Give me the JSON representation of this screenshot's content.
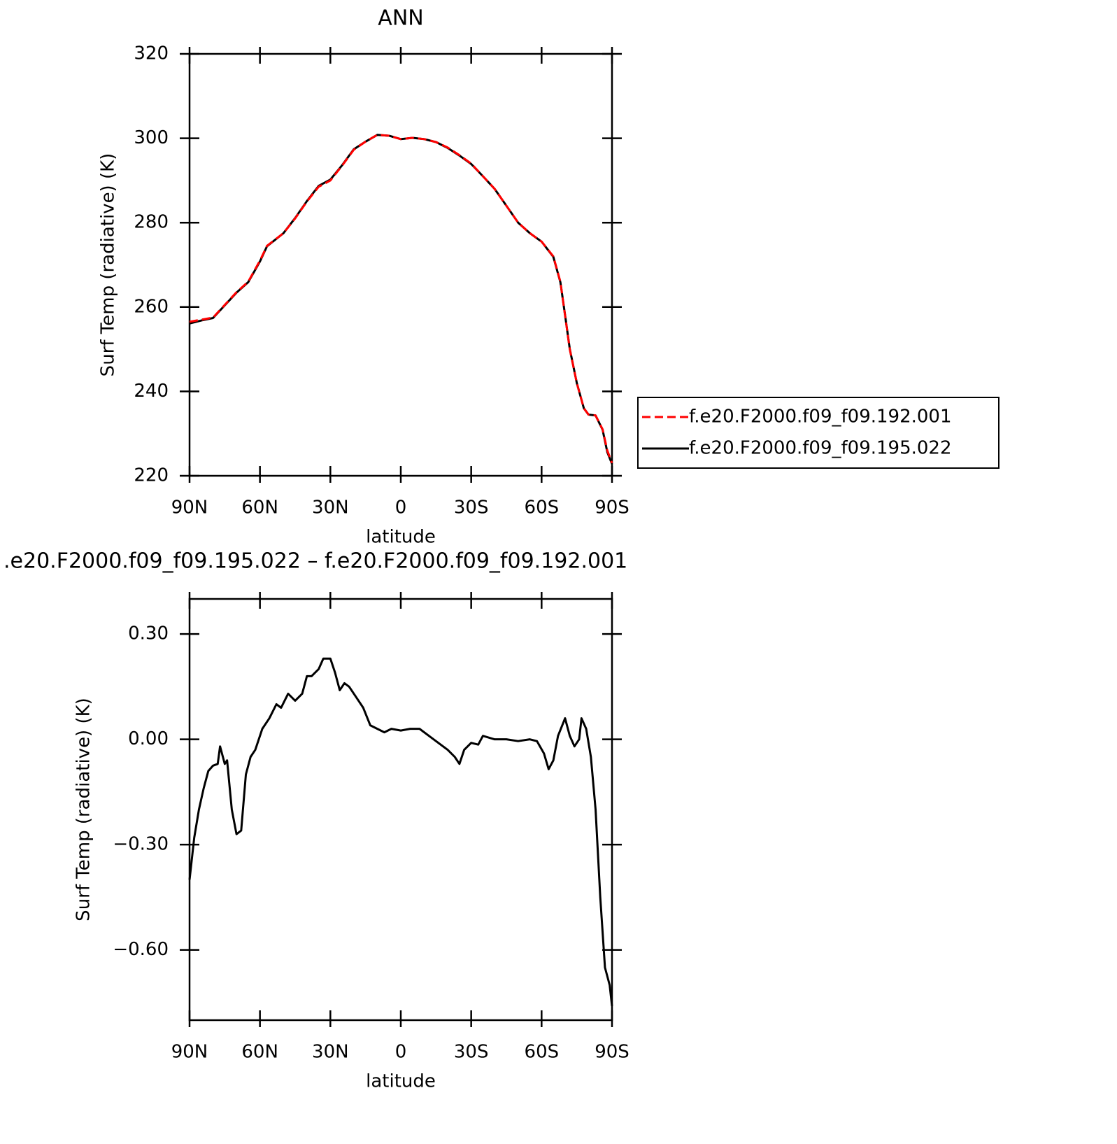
{
  "chart_data": [
    {
      "type": "line",
      "title": "ANN",
      "x_label": "latitude",
      "y_label": "Surf Temp (radiative) (K)",
      "x": [
        90,
        85,
        80,
        75,
        70,
        65,
        60,
        57,
        50,
        45,
        40,
        35,
        30,
        25,
        20,
        15,
        10,
        5,
        0,
        -5,
        -10,
        -15,
        -20,
        -25,
        -30,
        -35,
        -40,
        -45,
        -50,
        -55,
        -60,
        -65,
        -68,
        -70,
        -72,
        -75,
        -78,
        -80,
        -83,
        -86,
        -88,
        -90
      ],
      "series": [
        {
          "name": "f.e20.F2000.f09_f09.192.001",
          "color": "#ff0000",
          "line_style": "dashed",
          "values": [
            256.5,
            257,
            257.5,
            260.5,
            263.5,
            266,
            271,
            274.5,
            277.5,
            281,
            285,
            288.5,
            290,
            293.5,
            297.3,
            299.2,
            300.8,
            300.6,
            299.8,
            300.1,
            299.8,
            299.1,
            297.8,
            296,
            294,
            291,
            288,
            284,
            280,
            277.5,
            275.5,
            272,
            266,
            258,
            250,
            242,
            236,
            234.5,
            234.3,
            231,
            226,
            223
          ]
        },
        {
          "name": "f.e20.F2000.f09_f09.195.022",
          "color": "#000000",
          "line_style": "solid",
          "values": [
            256.1,
            256.8,
            257.4,
            260.4,
            263.4,
            265.9,
            270.8,
            274.4,
            277.5,
            281.1,
            285.1,
            288.7,
            290.2,
            293.6,
            297.4,
            299.2,
            300.8,
            300.6,
            299.8,
            300.1,
            299.8,
            299.1,
            297.7,
            295.9,
            293.9,
            291,
            288,
            284,
            280,
            277.5,
            275.5,
            271.9,
            265.9,
            258.1,
            250.1,
            242,
            236,
            234.5,
            234.3,
            230.9,
            225.6,
            222.8
          ]
        }
      ],
      "xlim": [
        90,
        -90
      ],
      "xticks": [
        {
          "value": 90,
          "label": "90N"
        },
        {
          "value": 60,
          "label": "60N"
        },
        {
          "value": 30,
          "label": "30N"
        },
        0,
        {
          "value": -30,
          "label": "30S"
        },
        {
          "value": -60,
          "label": "60S"
        },
        {
          "value": -90,
          "label": "90S"
        }
      ],
      "ylim": [
        220,
        320
      ],
      "yticks": [
        220,
        240,
        260,
        280,
        300,
        320
      ],
      "legend": "right"
    },
    {
      "type": "line",
      "title": ".e20.F2000.f09_f09.195.022 – f.e20.F2000.f09_f09.192.001",
      "x_label": "latitude",
      "y_label": "Surf Temp (radiative) (K)",
      "x": [
        90,
        88,
        86,
        84,
        82,
        80,
        78,
        77,
        75,
        74,
        72,
        70,
        68,
        66,
        64,
        62,
        59,
        56,
        53,
        51,
        48,
        45,
        42,
        40,
        38,
        35,
        33,
        30,
        28,
        26,
        24,
        22,
        19,
        16,
        13,
        10,
        7,
        4,
        0,
        -4,
        -8,
        -12,
        -16,
        -20,
        -23,
        -25,
        -27,
        -30,
        -33,
        -35,
        -40,
        -45,
        -50,
        -55,
        -58,
        -61,
        -63,
        -65,
        -67,
        -70,
        -72,
        -74,
        -76,
        -77,
        -79,
        -81,
        -83,
        -85,
        -87,
        -89,
        -90
      ],
      "series": [
        {
          "name": "f.e20.F2000.f09_f09.195.022 – f.e20.F2000.f09_f09.192.001",
          "color": "#000000",
          "line_style": "solid",
          "values": [
            -0.4,
            -0.28,
            -0.2,
            -0.14,
            -0.09,
            -0.075,
            -0.07,
            -0.02,
            -0.07,
            -0.06,
            -0.2,
            -0.27,
            -0.26,
            -0.1,
            -0.05,
            -0.03,
            0.03,
            0.06,
            0.1,
            0.09,
            0.13,
            0.11,
            0.13,
            0.18,
            0.18,
            0.2,
            0.23,
            0.23,
            0.19,
            0.14,
            0.16,
            0.15,
            0.12,
            0.09,
            0.04,
            0.03,
            0.02,
            0.03,
            0.025,
            0.03,
            0.03,
            0.01,
            -0.01,
            -0.03,
            -0.05,
            -0.07,
            -0.03,
            -0.01,
            -0.015,
            0.01,
            0.0,
            0.0,
            -0.005,
            0.0,
            -0.005,
            -0.04,
            -0.085,
            -0.06,
            0.01,
            0.06,
            0.01,
            -0.02,
            0.0,
            0.06,
            0.03,
            -0.05,
            -0.2,
            -0.45,
            -0.65,
            -0.7,
            -0.76
          ]
        }
      ],
      "xlim": [
        90,
        -90
      ],
      "xticks": [
        {
          "value": 90,
          "label": "90N"
        },
        {
          "value": 60,
          "label": "60N"
        },
        {
          "value": 30,
          "label": "30N"
        },
        0,
        {
          "value": -30,
          "label": "30S"
        },
        {
          "value": -60,
          "label": "60S"
        },
        {
          "value": -90,
          "label": "90S"
        }
      ],
      "ylim": [
        -0.8,
        0.4
      ],
      "yticks": [
        {
          "value": -0.6,
          "label": "−0.60"
        },
        {
          "value": -0.3,
          "label": "−0.30"
        },
        {
          "value": 0,
          "label": "0.00"
        },
        {
          "value": 0.3,
          "label": "0.30"
        }
      ]
    }
  ]
}
